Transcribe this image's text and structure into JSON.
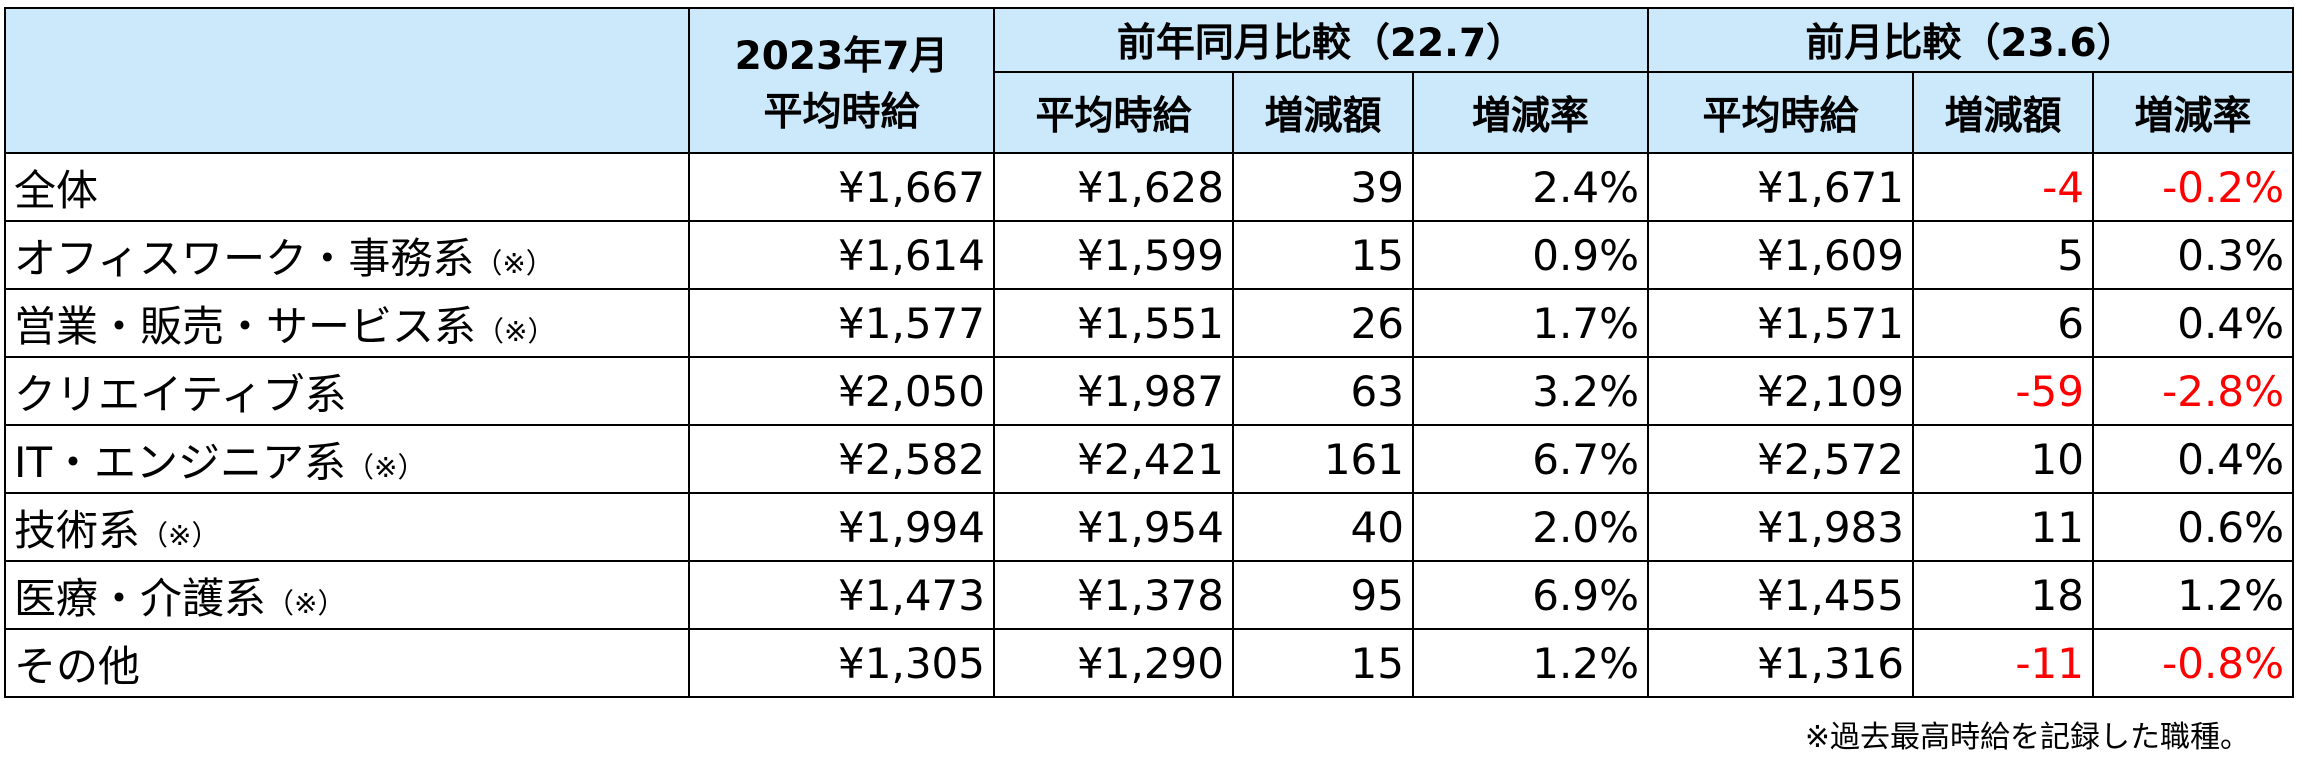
{
  "table": {
    "header": {
      "period": "2023年7月",
      "period_sub": "平均時給",
      "yoy": "前年同月比較（22.7）",
      "mom": "前月比較（23.6）",
      "sub": [
        "平均時給",
        "増減額",
        "増減率",
        "平均時給",
        "増減額",
        "増減率"
      ]
    },
    "rows": [
      {
        "label": "全体",
        "cells": [
          "¥1,667",
          "¥1,628",
          "39",
          "2.4%",
          "¥1,671",
          "-4",
          "-0.2%"
        ]
      },
      {
        "label": "オフィスワーク・事務系",
        "note": "（※）",
        "cells": [
          "¥1,614",
          "¥1,599",
          "15",
          "0.9%",
          "¥1,609",
          "5",
          "0.3%"
        ]
      },
      {
        "label": "営業・販売・サービス系",
        "note": "（※）",
        "cells": [
          "¥1,577",
          "¥1,551",
          "26",
          "1.7%",
          "¥1,571",
          "6",
          "0.4%"
        ]
      },
      {
        "label": "クリエイティブ系",
        "cells": [
          "¥2,050",
          "¥1,987",
          "63",
          "3.2%",
          "¥2,109",
          "-59",
          "-2.8%"
        ]
      },
      {
        "label": "IT・エンジニア系",
        "note": "（※）",
        "cells": [
          "¥2,582",
          "¥2,421",
          "161",
          "6.7%",
          "¥2,572",
          "10",
          "0.4%"
        ]
      },
      {
        "label": "技術系",
        "note": "（※）",
        "cells": [
          "¥1,994",
          "¥1,954",
          "40",
          "2.0%",
          "¥1,983",
          "11",
          "0.6%"
        ]
      },
      {
        "label": "医療・介護系",
        "note": "（※）",
        "cells": [
          "¥1,473",
          "¥1,378",
          "95",
          "6.9%",
          "¥1,455",
          "18",
          "1.2%"
        ]
      },
      {
        "label": "その他",
        "cells": [
          "¥1,305",
          "¥1,290",
          "15",
          "1.2%",
          "¥1,316",
          "-11",
          "-0.8%"
        ]
      }
    ]
  },
  "footnote": "※過去最高時給を記録した職種。"
}
